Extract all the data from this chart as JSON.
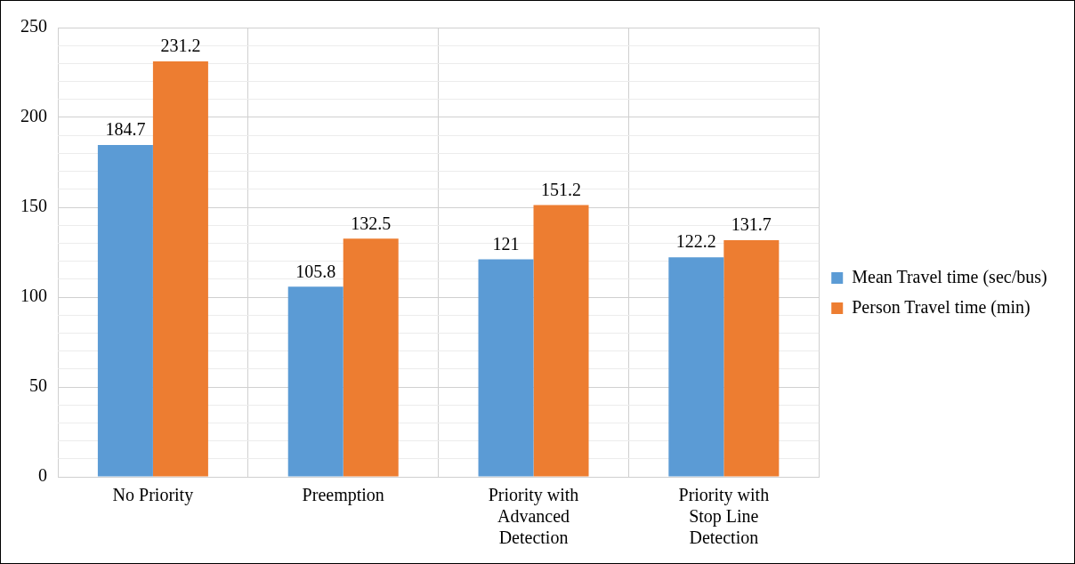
{
  "chart_data": {
    "type": "bar",
    "categories": [
      "No Priority",
      "Preemption",
      "Priority with Advanced Detection",
      "Priority with Stop Line Detection"
    ],
    "series": [
      {
        "name": "Mean Travel time (sec/bus)",
        "color": "#5b9bd5",
        "values": [
          184.7,
          105.8,
          121,
          122.2
        ]
      },
      {
        "name": "Person Travel time (min)",
        "color": "#ed7d31",
        "values": [
          231.2,
          132.5,
          151.2,
          131.7
        ]
      }
    ],
    "ylim": [
      0,
      250
    ],
    "yticks": [
      0,
      {
        "value": 10,
        "label": null
      },
      {
        "value": 20,
        "label": null
      },
      {
        "value": 30,
        "label": null
      },
      {
        "value": 40,
        "label": null
      },
      50,
      {
        "value": 60,
        "label": null
      },
      {
        "value": 70,
        "label": null
      },
      {
        "value": 80,
        "label": null
      },
      {
        "value": 90,
        "label": null
      },
      100,
      {
        "value": 110,
        "label": null
      },
      {
        "value": 120,
        "label": null
      },
      {
        "value": 130,
        "label": null
      },
      {
        "value": 140,
        "label": null
      },
      150,
      {
        "value": 160,
        "label": null
      },
      {
        "value": 170,
        "label": null
      },
      {
        "value": 180,
        "label": null
      },
      {
        "value": 190,
        "label": null
      },
      200,
      {
        "value": 210,
        "label": null
      },
      {
        "value": 220,
        "label": null
      },
      {
        "value": 230,
        "label": null
      },
      {
        "value": 240,
        "label": null
      },
      250
    ],
    "grid": true,
    "legend": "right",
    "data_labels": true
  }
}
